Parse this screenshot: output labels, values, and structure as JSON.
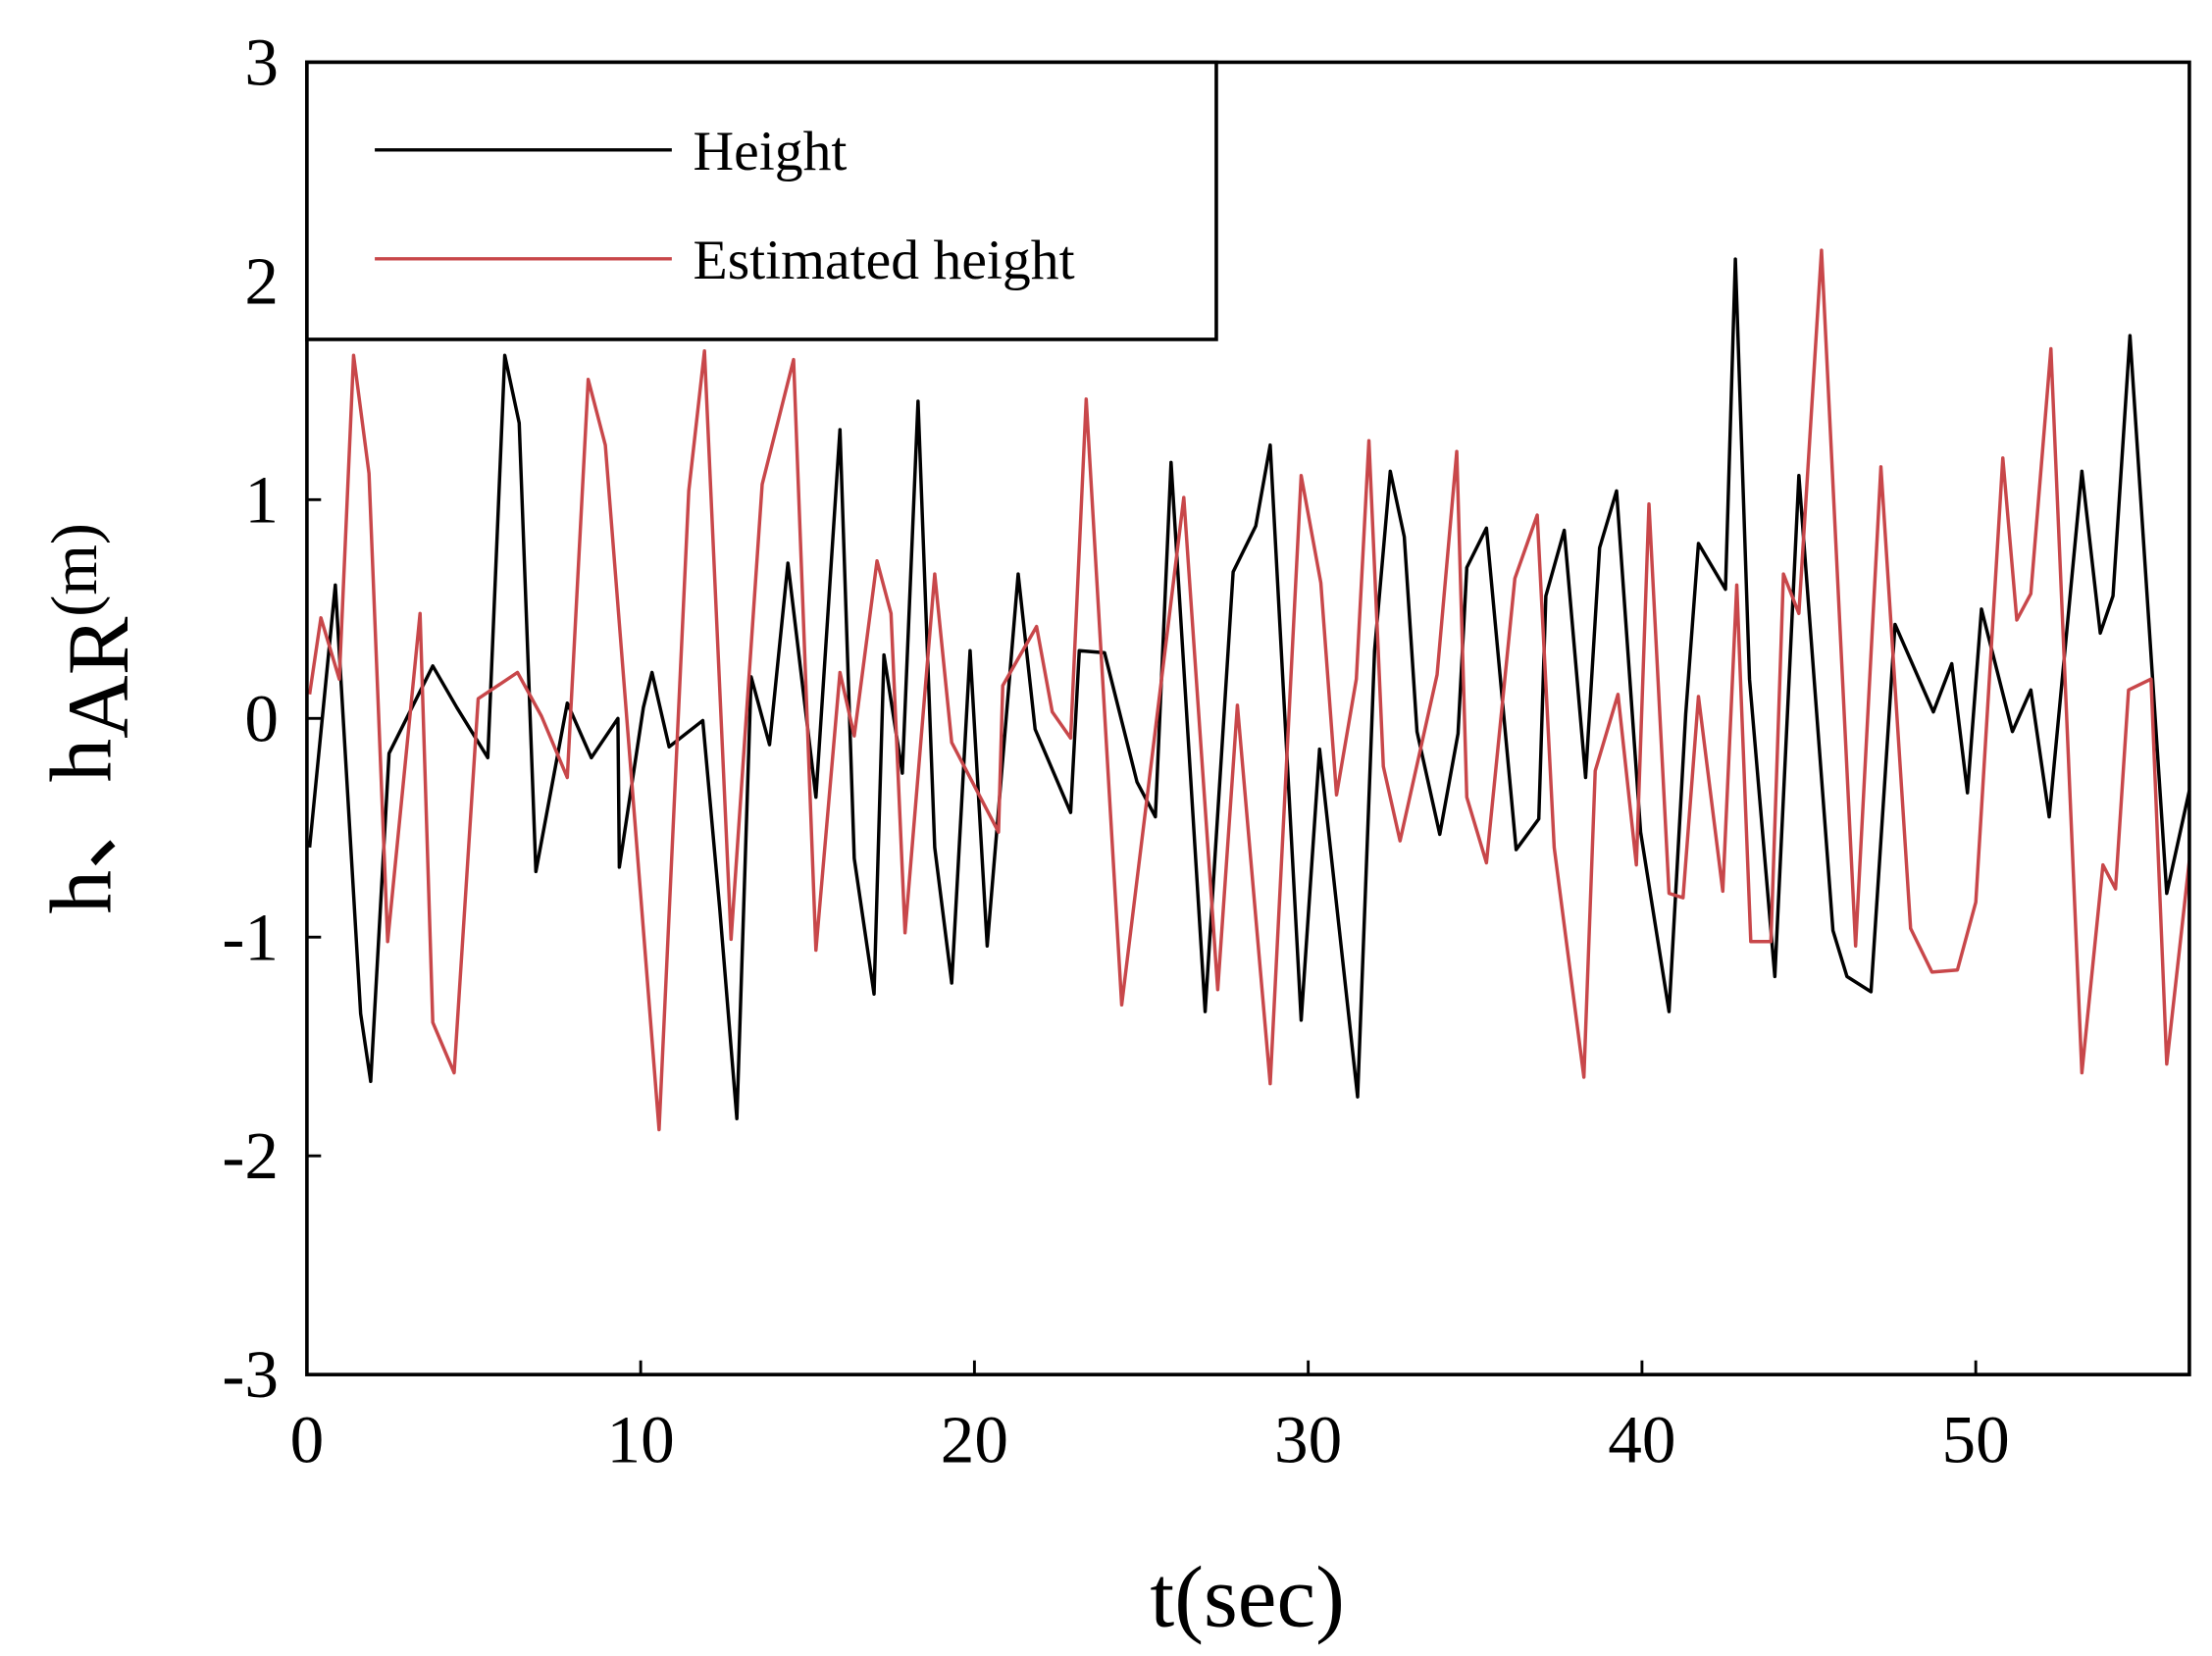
{
  "chart_data": {
    "type": "line",
    "xlabel": "t(sec)",
    "ylabel": [
      "h、h",
      "AR",
      "(m)"
    ],
    "xlim": [
      0,
      56.4
    ],
    "ylim": [
      -3,
      3
    ],
    "xticks": [
      0,
      10,
      20,
      30,
      40,
      50
    ],
    "yticks": [
      -3,
      -2,
      -1,
      0,
      1,
      2,
      3
    ],
    "legend": "upper left",
    "series": [
      {
        "name": "Height",
        "color": "#000000",
        "x": [
          0.08,
          0.85,
          1.61,
          1.91,
          2.46,
          3.77,
          4.49,
          5.42,
          5.93,
          6.36,
          6.86,
          7.8,
          8.52,
          9.32,
          9.36,
          10.08,
          10.34,
          10.85,
          11.86,
          12.37,
          12.88,
          13.31,
          13.86,
          14.41,
          15.25,
          15.97,
          16.4,
          16.99,
          17.29,
          17.84,
          18.31,
          18.81,
          19.32,
          19.87,
          20.38,
          21.31,
          21.82,
          22.88,
          23.14,
          23.9,
          24.87,
          25.42,
          25.89,
          26.91,
          27.75,
          28.43,
          28.86,
          29.79,
          30.34,
          31.48,
          31.99,
          32.46,
          32.88,
          33.26,
          33.94,
          34.49,
          34.75,
          35.34,
          36.23,
          36.91,
          37.12,
          37.67,
          38.31,
          38.73,
          39.24,
          39.96,
          40.81,
          41.31,
          41.69,
          42.5,
          42.8,
          43.22,
          43.98,
          44.7,
          45.72,
          46.14,
          46.86,
          47.58,
          48.73,
          49.28,
          49.75,
          50.17,
          51.1,
          51.65,
          52.2,
          53.18,
          53.73,
          54.11,
          54.62,
          55.72,
          56.4
        ],
        "values": [
          -0.59,
          0.61,
          -1.35,
          -1.66,
          -0.16,
          0.24,
          0.05,
          -0.18,
          1.66,
          1.35,
          -0.7,
          0.07,
          -0.18,
          0.0,
          -0.68,
          0.05,
          0.21,
          -0.13,
          -0.01,
          -0.87,
          -1.83,
          0.19,
          -0.12,
          0.71,
          -0.36,
          1.32,
          -0.64,
          -1.26,
          0.29,
          -0.25,
          1.45,
          -0.59,
          -1.21,
          0.31,
          -1.04,
          0.66,
          -0.05,
          -0.43,
          0.31,
          0.3,
          -0.29,
          -0.45,
          1.17,
          -1.34,
          0.67,
          0.88,
          1.25,
          -1.38,
          -0.14,
          -1.73,
          0.31,
          1.13,
          0.83,
          -0.06,
          -0.53,
          -0.07,
          0.69,
          0.87,
          -0.6,
          -0.46,
          0.56,
          0.86,
          -0.27,
          0.78,
          1.04,
          -0.52,
          -1.34,
          0.02,
          0.8,
          0.59,
          2.1,
          0.18,
          -1.18,
          1.11,
          -0.97,
          -1.18,
          -1.25,
          0.43,
          0.03,
          0.25,
          -0.34,
          0.5,
          -0.06,
          0.13,
          -0.45,
          1.13,
          0.39,
          0.56,
          1.75,
          -0.8,
          -0.33
        ]
      },
      {
        "name": "Estimated height",
        "color": "#c8474a",
        "x": [
          0.08,
          0.42,
          0.97,
          1.4,
          1.86,
          2.42,
          3.39,
          3.77,
          4.41,
          5.13,
          6.31,
          7.03,
          7.8,
          8.43,
          8.94,
          10.55,
          11.44,
          11.91,
          12.71,
          13.64,
          14.58,
          15.25,
          15.97,
          16.4,
          17.08,
          17.5,
          17.92,
          18.81,
          19.32,
          20.72,
          20.85,
          21.86,
          22.33,
          22.88,
          23.35,
          24.41,
          26.27,
          27.29,
          27.88,
          28.86,
          29.79,
          30.38,
          30.85,
          31.44,
          31.82,
          32.25,
          32.75,
          33.86,
          34.45,
          34.75,
          35.34,
          36.19,
          36.86,
          37.37,
          38.26,
          38.6,
          39.28,
          39.83,
          40.21,
          40.81,
          41.23,
          41.69,
          42.42,
          42.84,
          43.26,
          43.86,
          44.24,
          44.7,
          45.38,
          46.4,
          47.16,
          48.05,
          48.69,
          49.45,
          50.0,
          50.81,
          51.23,
          51.65,
          52.25,
          53.18,
          53.81,
          54.19,
          54.58,
          55.25,
          55.72,
          56.4
        ],
        "values": [
          0.11,
          0.46,
          0.18,
          1.66,
          1.12,
          -1.02,
          0.48,
          -1.39,
          -1.62,
          0.09,
          0.21,
          0.01,
          -0.27,
          1.55,
          1.25,
          -1.88,
          1.04,
          1.68,
          -1.01,
          1.07,
          1.64,
          -1.06,
          0.21,
          -0.08,
          0.72,
          0.48,
          -0.98,
          0.66,
          -0.11,
          -0.52,
          0.15,
          0.42,
          0.03,
          -0.09,
          1.46,
          -1.31,
          1.01,
          -1.24,
          0.06,
          -1.67,
          1.11,
          0.62,
          -0.35,
          0.18,
          1.27,
          -0.22,
          -0.56,
          0.2,
          1.22,
          -0.36,
          -0.66,
          0.64,
          0.93,
          -0.59,
          -1.64,
          -0.24,
          0.11,
          -0.67,
          0.98,
          -0.8,
          -0.82,
          0.1,
          -0.79,
          0.61,
          -1.02,
          -1.02,
          0.66,
          0.48,
          2.14,
          -1.04,
          1.15,
          -0.96,
          -1.16,
          -1.15,
          -0.84,
          1.19,
          0.45,
          0.57,
          1.69,
          -1.62,
          -0.67,
          -0.78,
          0.13,
          0.18,
          -1.58,
          -0.65
        ]
      }
    ]
  }
}
